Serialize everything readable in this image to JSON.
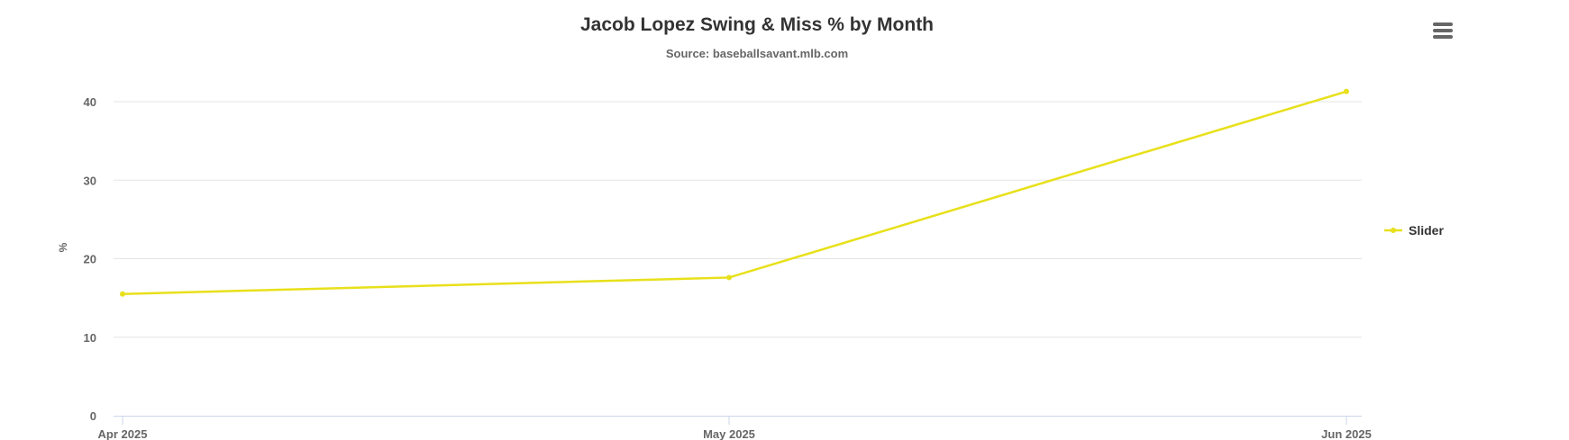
{
  "chart_data": {
    "type": "line",
    "title": "Jacob Lopez Swing & Miss % by Month",
    "subtitle": "Source: baseballsavant.mlb.com",
    "xlabel": "",
    "ylabel": "%",
    "categories": [
      "Apr 2025",
      "May 2025",
      "Jun 2025"
    ],
    "series": [
      {
        "name": "Slider",
        "values": [
          15.5,
          17.6,
          41.3
        ],
        "color": "#e8e01a"
      }
    ],
    "ylim": [
      0,
      40
    ],
    "yticks": [
      0,
      10,
      20,
      30,
      40
    ],
    "grid": true,
    "legend": "right"
  },
  "menu_icon": "hamburger-menu-icon"
}
